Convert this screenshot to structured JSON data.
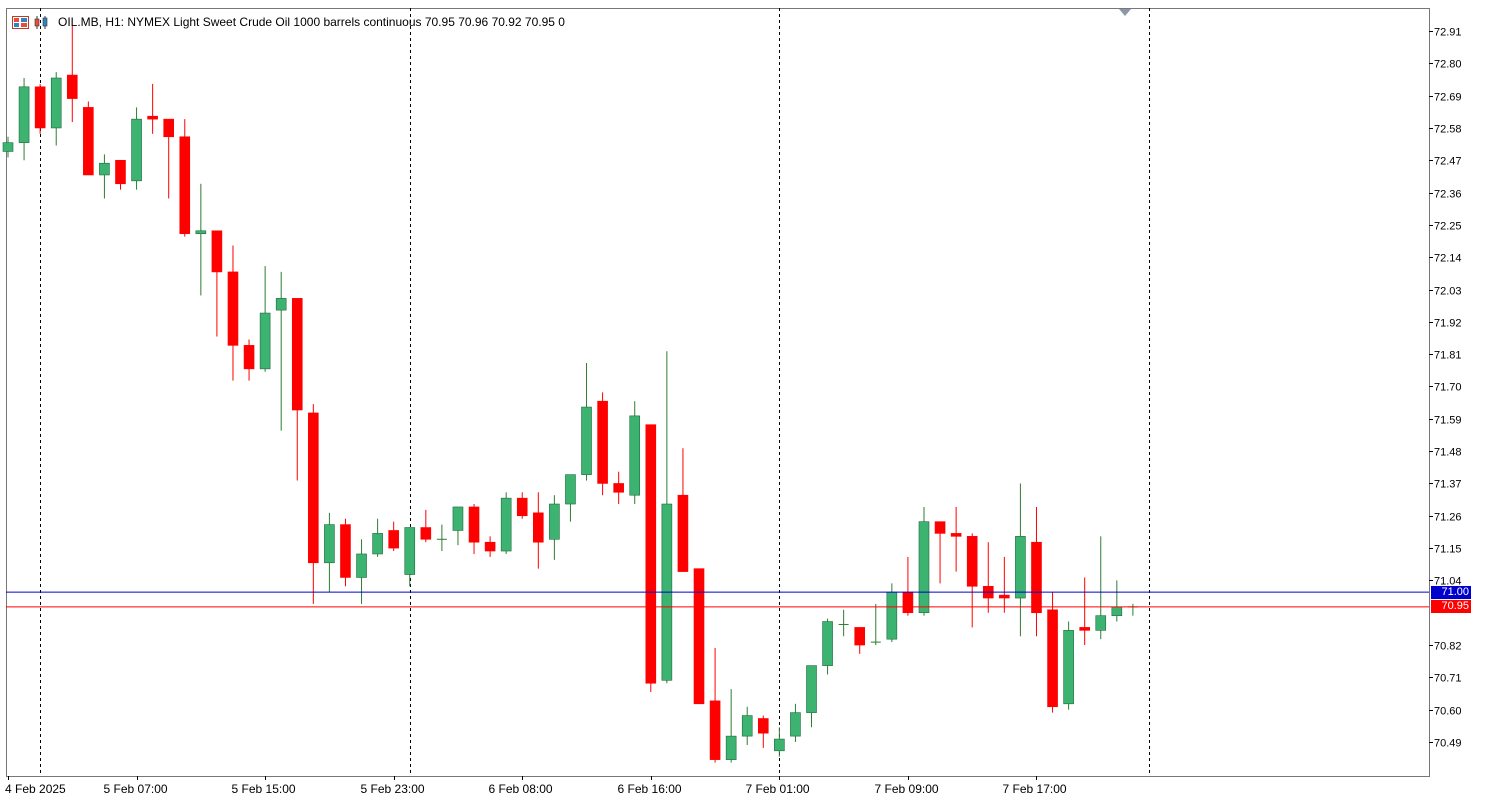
{
  "header": {
    "symbol_text": "OIL.MB, H1:  NYMEX Light Sweet Crude Oil 1000 barrels continuous  70.95 70.96 70.92 70.95  0",
    "icons": [
      "chart-windows-icon",
      "candle-icon"
    ]
  },
  "colors": {
    "bull": "#3cb371",
    "bear": "#ff0000",
    "frame": "#777777",
    "bid_line": "#ff0000",
    "ask_line": "#0000cc",
    "grid_separator": "#000000"
  },
  "price_tags": {
    "ask": "71.00",
    "bid": "70.95"
  },
  "chart_data": {
    "type": "candlestick",
    "timeframe": "H1",
    "ylim": [
      70.38,
      72.96
    ],
    "y_ticks": [
      "72.91",
      "72.80",
      "72.69",
      "72.58",
      "72.47",
      "72.36",
      "72.25",
      "72.14",
      "72.03",
      "71.92",
      "71.81",
      "71.70",
      "71.59",
      "71.48",
      "71.37",
      "71.26",
      "71.15",
      "71.04",
      "70.82",
      "70.71",
      "70.60",
      "70.49"
    ],
    "x_labels": [
      {
        "text": "4 Feb 2025",
        "index": 0
      },
      {
        "text": "5 Feb 07:00",
        "index": 8
      },
      {
        "text": "5 Feb 15:00",
        "index": 16
      },
      {
        "text": "5 Feb 23:00",
        "index": 24
      },
      {
        "text": "6 Feb 08:00",
        "index": 32
      },
      {
        "text": "6 Feb 16:00",
        "index": 40
      },
      {
        "text": "7 Feb 01:00",
        "index": 48
      },
      {
        "text": "7 Feb 09:00",
        "index": 56
      },
      {
        "text": "7 Feb 17:00",
        "index": 64
      }
    ],
    "separators": [
      2,
      25,
      48,
      71
    ],
    "ask": 71.0,
    "bid": 70.95,
    "candles": [
      {
        "o": 72.5,
        "h": 72.55,
        "l": 72.48,
        "c": 72.53
      },
      {
        "o": 72.53,
        "h": 72.75,
        "l": 72.47,
        "c": 72.72
      },
      {
        "o": 72.72,
        "h": 72.73,
        "l": 72.56,
        "c": 72.58
      },
      {
        "o": 72.58,
        "h": 72.77,
        "l": 72.52,
        "c": 72.75
      },
      {
        "o": 72.76,
        "h": 72.93,
        "l": 72.6,
        "c": 72.68
      },
      {
        "o": 72.65,
        "h": 72.67,
        "l": 72.42,
        "c": 72.42
      },
      {
        "o": 72.42,
        "h": 72.49,
        "l": 72.34,
        "c": 72.46
      },
      {
        "o": 72.47,
        "h": 72.47,
        "l": 72.37,
        "c": 72.39
      },
      {
        "o": 72.4,
        "h": 72.65,
        "l": 72.37,
        "c": 72.61
      },
      {
        "o": 72.62,
        "h": 72.73,
        "l": 72.56,
        "c": 72.61
      },
      {
        "o": 72.61,
        "h": 72.61,
        "l": 72.34,
        "c": 72.55
      },
      {
        "o": 72.55,
        "h": 72.61,
        "l": 72.21,
        "c": 72.22
      },
      {
        "o": 72.22,
        "h": 72.39,
        "l": 72.01,
        "c": 72.23
      },
      {
        "o": 72.23,
        "h": 72.23,
        "l": 71.87,
        "c": 72.09
      },
      {
        "o": 72.09,
        "h": 72.18,
        "l": 71.72,
        "c": 71.84
      },
      {
        "o": 71.84,
        "h": 71.86,
        "l": 71.72,
        "c": 71.76
      },
      {
        "o": 71.76,
        "h": 72.11,
        "l": 71.75,
        "c": 71.95
      },
      {
        "o": 71.96,
        "h": 72.09,
        "l": 71.55,
        "c": 72.0
      },
      {
        "o": 72.0,
        "h": 72.0,
        "l": 71.38,
        "c": 71.62
      },
      {
        "o": 71.61,
        "h": 71.64,
        "l": 70.96,
        "c": 71.1
      },
      {
        "o": 71.1,
        "h": 71.27,
        "l": 71.0,
        "c": 71.23
      },
      {
        "o": 71.23,
        "h": 71.25,
        "l": 71.02,
        "c": 71.05
      },
      {
        "o": 71.05,
        "h": 71.18,
        "l": 70.96,
        "c": 71.13
      },
      {
        "o": 71.13,
        "h": 71.25,
        "l": 71.12,
        "c": 71.2
      },
      {
        "o": 71.21,
        "h": 71.24,
        "l": 71.14,
        "c": 71.15
      },
      {
        "o": 71.06,
        "h": 71.22,
        "l": 71.02,
        "c": 71.22
      },
      {
        "o": 71.22,
        "h": 71.28,
        "l": 71.17,
        "c": 71.18
      },
      {
        "o": 71.18,
        "h": 71.23,
        "l": 71.14,
        "c": 71.18
      },
      {
        "o": 71.21,
        "h": 71.29,
        "l": 71.16,
        "c": 71.29
      },
      {
        "o": 71.29,
        "h": 71.3,
        "l": 71.13,
        "c": 71.17
      },
      {
        "o": 71.17,
        "h": 71.19,
        "l": 71.12,
        "c": 71.14
      },
      {
        "o": 71.14,
        "h": 71.34,
        "l": 71.13,
        "c": 71.32
      },
      {
        "o": 71.32,
        "h": 71.34,
        "l": 71.25,
        "c": 71.26
      },
      {
        "o": 71.27,
        "h": 71.34,
        "l": 71.08,
        "c": 71.17
      },
      {
        "o": 71.18,
        "h": 71.33,
        "l": 71.11,
        "c": 71.3
      },
      {
        "o": 71.3,
        "h": 71.38,
        "l": 71.24,
        "c": 71.4
      },
      {
        "o": 71.4,
        "h": 71.78,
        "l": 71.38,
        "c": 71.63
      },
      {
        "o": 71.65,
        "h": 71.68,
        "l": 71.33,
        "c": 71.37
      },
      {
        "o": 71.37,
        "h": 71.41,
        "l": 71.3,
        "c": 71.34
      },
      {
        "o": 71.33,
        "h": 71.65,
        "l": 71.3,
        "c": 71.6
      },
      {
        "o": 71.57,
        "h": 71.57,
        "l": 70.66,
        "c": 70.69
      },
      {
        "o": 70.7,
        "h": 71.82,
        "l": 70.69,
        "c": 71.3
      },
      {
        "o": 71.33,
        "h": 71.49,
        "l": 71.07,
        "c": 71.07
      },
      {
        "o": 71.08,
        "h": 71.08,
        "l": 70.62,
        "c": 70.62
      },
      {
        "o": 70.63,
        "h": 70.81,
        "l": 70.42,
        "c": 70.43
      },
      {
        "o": 70.43,
        "h": 70.67,
        "l": 70.42,
        "c": 70.51
      },
      {
        "o": 70.51,
        "h": 70.61,
        "l": 70.48,
        "c": 70.58
      },
      {
        "o": 70.57,
        "h": 70.58,
        "l": 70.47,
        "c": 70.52
      },
      {
        "o": 70.46,
        "h": 70.54,
        "l": 70.44,
        "c": 70.5
      },
      {
        "o": 70.51,
        "h": 70.62,
        "l": 70.49,
        "c": 70.59
      },
      {
        "o": 70.59,
        "h": 70.75,
        "l": 70.54,
        "c": 70.75
      },
      {
        "o": 70.75,
        "h": 70.91,
        "l": 70.72,
        "c": 70.9
      },
      {
        "o": 70.89,
        "h": 70.94,
        "l": 70.85,
        "c": 70.89
      },
      {
        "o": 70.88,
        "h": 70.88,
        "l": 70.79,
        "c": 70.82
      },
      {
        "o": 70.83,
        "h": 70.96,
        "l": 70.82,
        "c": 70.83
      },
      {
        "o": 70.84,
        "h": 71.03,
        "l": 70.83,
        "c": 71.0
      },
      {
        "o": 71.0,
        "h": 71.12,
        "l": 70.92,
        "c": 70.93
      },
      {
        "o": 70.93,
        "h": 71.29,
        "l": 70.92,
        "c": 71.24
      },
      {
        "o": 71.24,
        "h": 71.24,
        "l": 71.03,
        "c": 71.2
      },
      {
        "o": 71.2,
        "h": 71.29,
        "l": 71.07,
        "c": 71.19
      },
      {
        "o": 71.19,
        "h": 71.2,
        "l": 70.88,
        "c": 71.02
      },
      {
        "o": 71.02,
        "h": 71.17,
        "l": 70.93,
        "c": 70.98
      },
      {
        "o": 70.99,
        "h": 71.12,
        "l": 70.93,
        "c": 70.98
      },
      {
        "o": 70.98,
        "h": 71.37,
        "l": 70.85,
        "c": 71.19
      },
      {
        "o": 71.17,
        "h": 71.29,
        "l": 70.85,
        "c": 70.93
      },
      {
        "o": 70.94,
        "h": 71.0,
        "l": 70.59,
        "c": 70.61
      },
      {
        "o": 70.62,
        "h": 70.9,
        "l": 70.6,
        "c": 70.87
      },
      {
        "o": 70.88,
        "h": 71.05,
        "l": 70.82,
        "c": 70.87
      },
      {
        "o": 70.87,
        "h": 71.19,
        "l": 70.84,
        "c": 70.92
      },
      {
        "o": 70.92,
        "h": 71.04,
        "l": 70.9,
        "c": 70.95
      },
      {
        "o": 70.95,
        "h": 70.96,
        "l": 70.92,
        "c": 70.95
      }
    ]
  }
}
